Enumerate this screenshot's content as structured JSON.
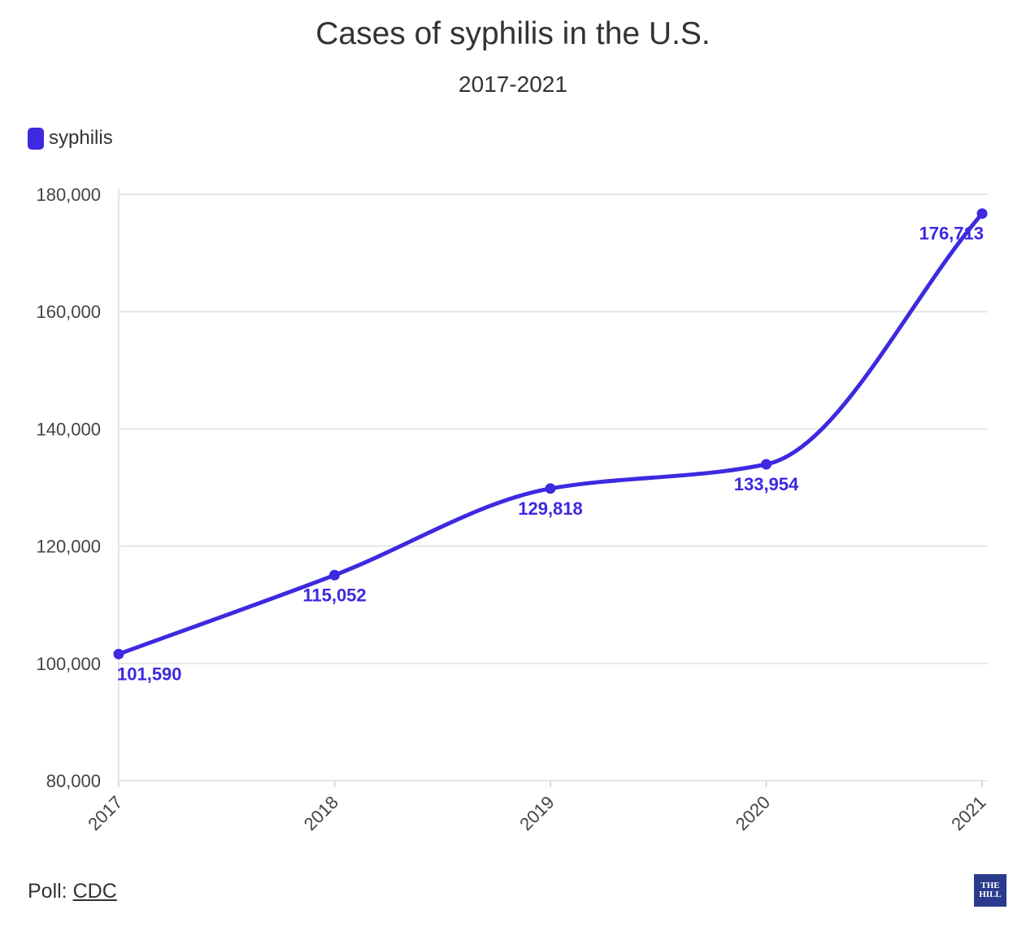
{
  "chart_data": {
    "type": "line",
    "title": "Cases of syphilis in the U.S.",
    "subtitle": "2017-2021",
    "categories": [
      "2017",
      "2018",
      "2019",
      "2020",
      "2021"
    ],
    "series": [
      {
        "name": "syphilis",
        "values": [
          101590,
          115052,
          129818,
          133954,
          176713
        ],
        "labels": [
          "101,590",
          "115,052",
          "129,818",
          "133,954",
          "176,713"
        ],
        "color": "#3d29e0"
      }
    ],
    "yticks": [
      80000,
      100000,
      120000,
      140000,
      160000,
      180000
    ],
    "ytick_labels": [
      "80,000",
      "100,000",
      "120,000",
      "140,000",
      "160,000",
      "180,000"
    ],
    "ylim": [
      80000,
      180000
    ],
    "grid": true,
    "legend": "top-left"
  },
  "footer": {
    "source_prefix": "Poll: ",
    "source_link": "CDC"
  },
  "logo": {
    "line1": "THE",
    "line2": "HILL"
  },
  "colors": {
    "series": "#3d29e0",
    "grid": "#e6e6e6",
    "text": "#333333"
  }
}
